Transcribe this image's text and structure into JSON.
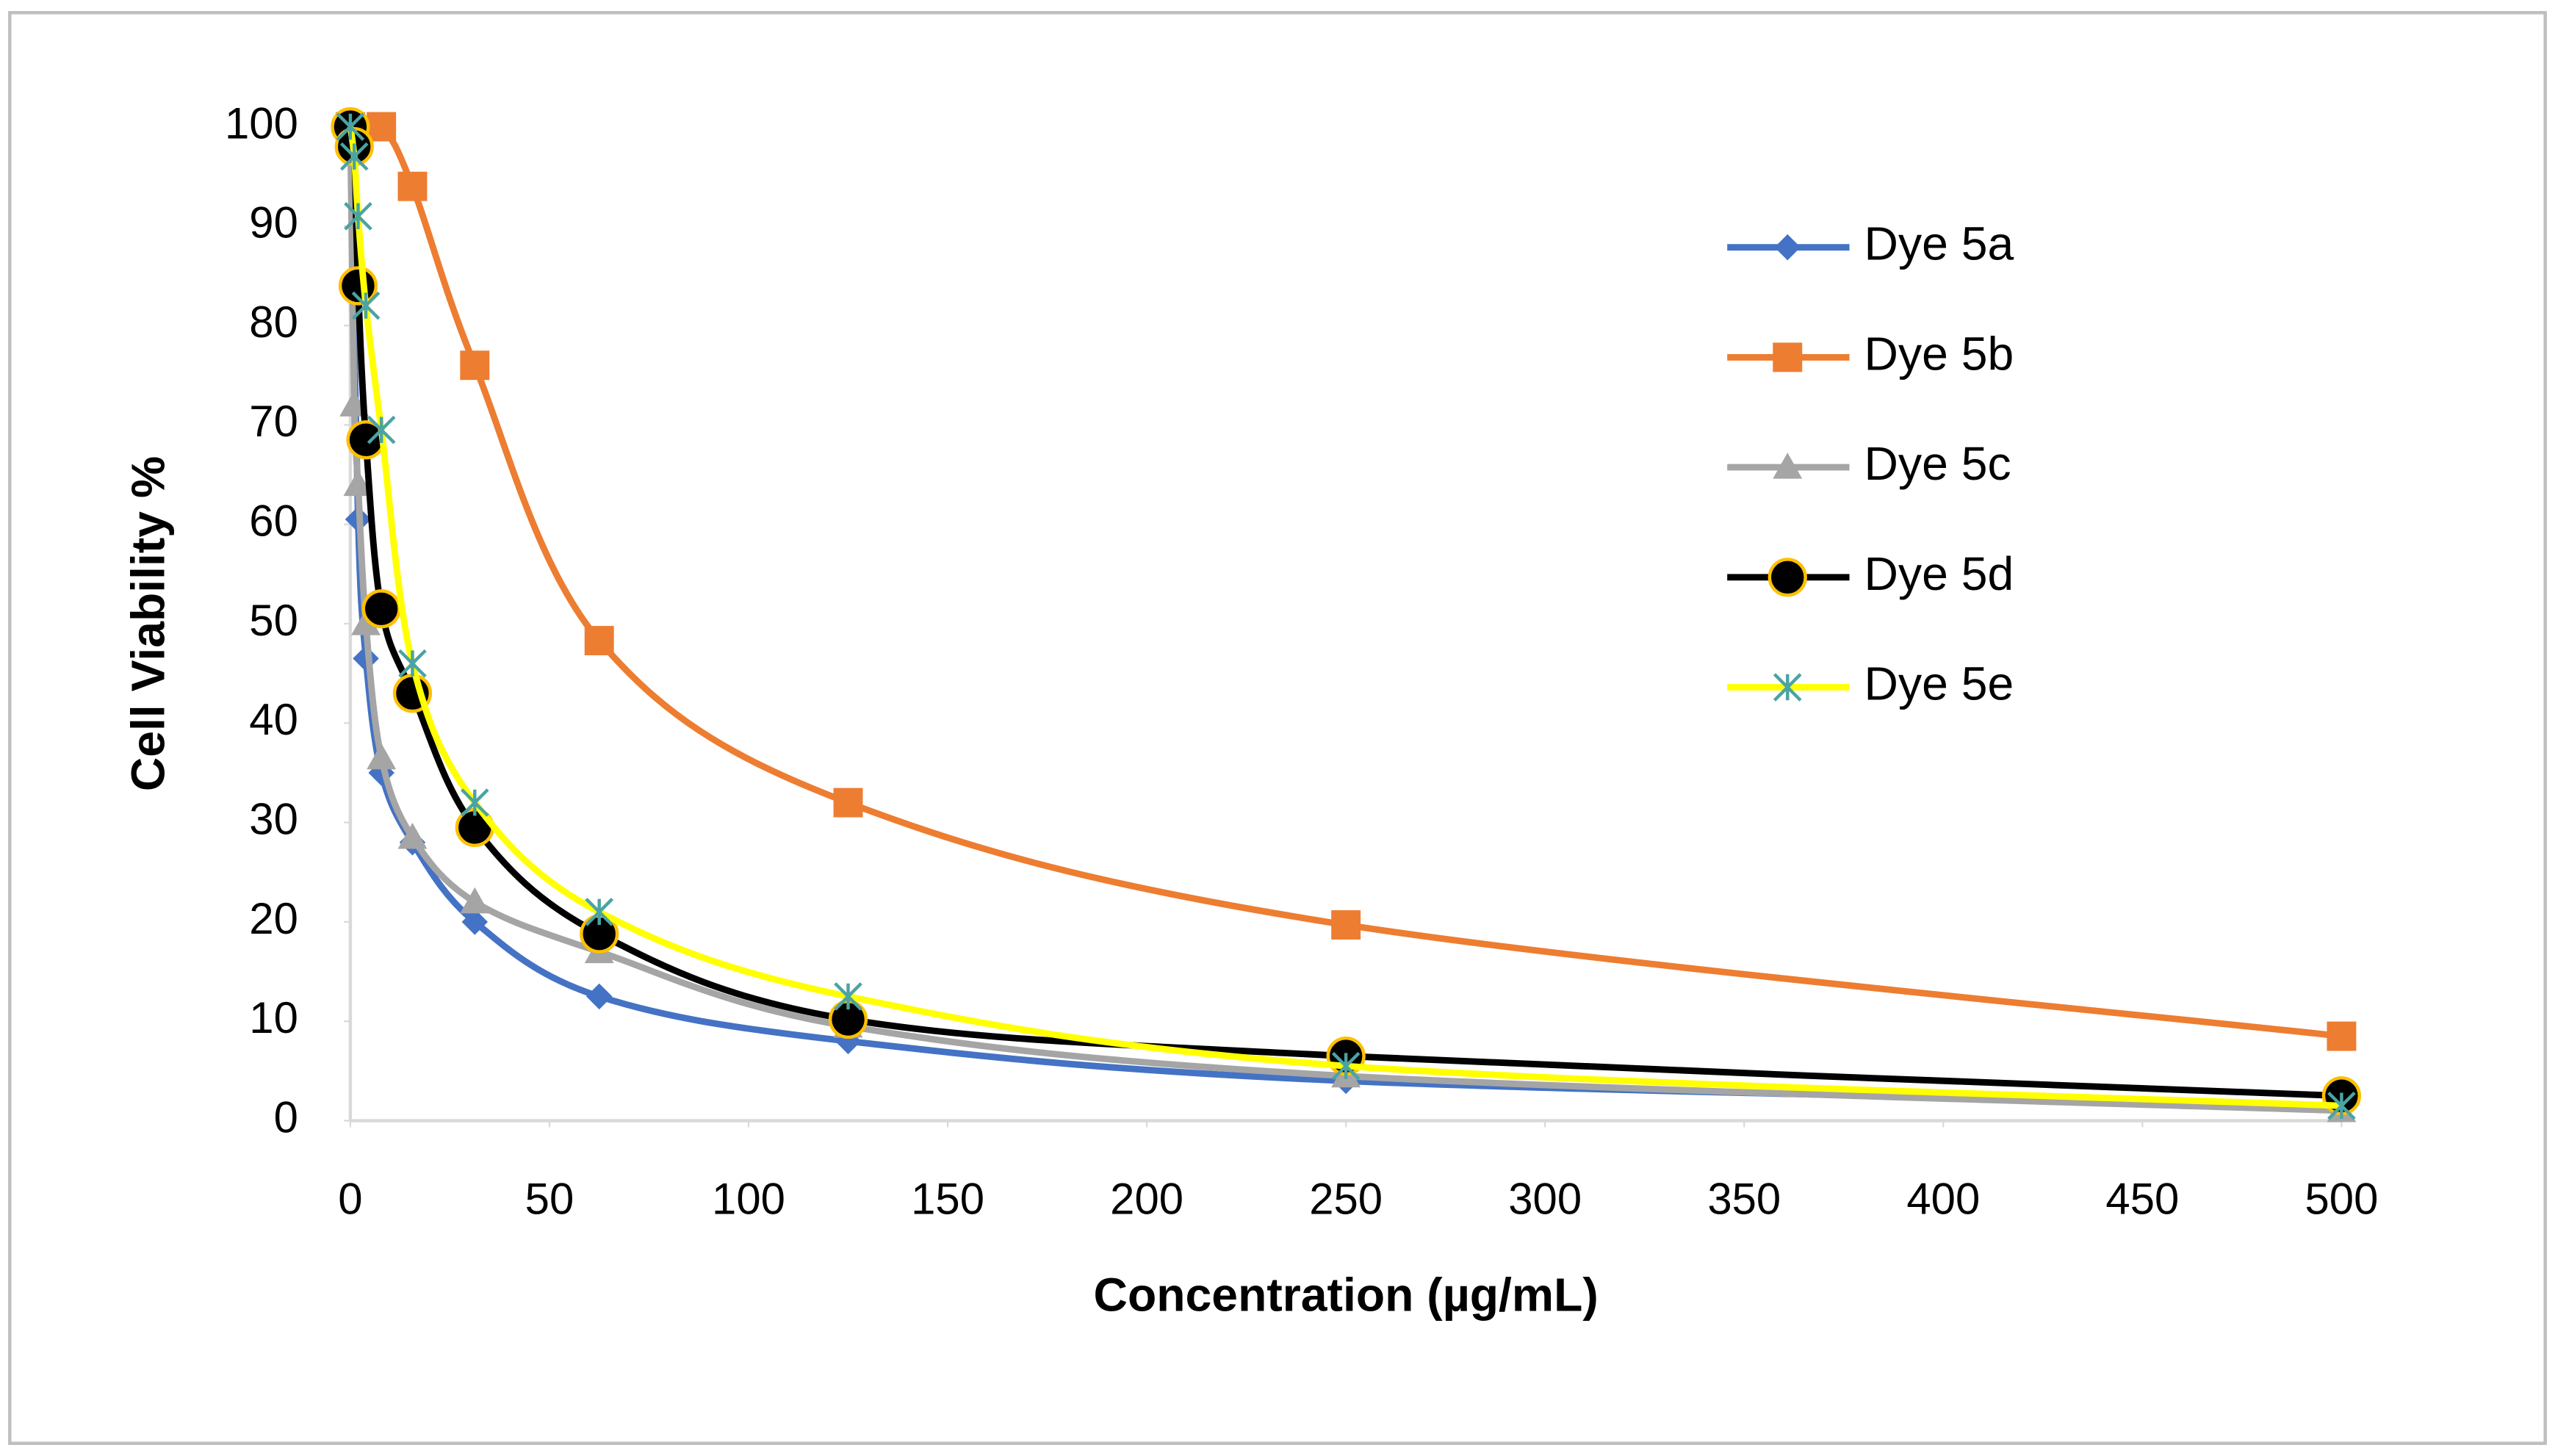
{
  "chart_data": {
    "type": "line",
    "x_label": "Concentration (µg/mL)",
    "y_label": "Cell  Viability %",
    "xlim": [
      0,
      500
    ],
    "xticks": [
      0,
      50,
      100,
      150,
      200,
      250,
      300,
      350,
      400,
      450,
      500
    ],
    "ylim": [
      0,
      100
    ],
    "yticks": [
      0,
      10,
      20,
      30,
      40,
      50,
      60,
      70,
      80,
      90,
      100
    ],
    "grid": false,
    "smooth": true,
    "legend": "right",
    "series": [
      {
        "name": "Dye 5a",
        "color": "#4472c4",
        "marker": "diamond",
        "x": [
          0,
          1.95,
          3.9,
          7.8,
          15.6,
          31.25,
          62.5,
          125,
          250,
          500
        ],
        "values": [
          100,
          60.5,
          46.5,
          35,
          28,
          20,
          12.5,
          8,
          4,
          1.5
        ]
      },
      {
        "name": "Dye 5b",
        "color": "#ed7d31",
        "marker": "square",
        "x": [
          0,
          7.8,
          15.6,
          31.25,
          62.5,
          125,
          250,
          500
        ],
        "values": [
          100,
          100,
          94,
          76,
          48.3,
          32,
          19.7,
          8.5
        ]
      },
      {
        "name": "Dye 5c",
        "color": "#a5a5a5",
        "marker": "triangle",
        "x": [
          0,
          0.98,
          1.95,
          3.9,
          7.8,
          15.6,
          31.25,
          62.5,
          125,
          250,
          500
        ],
        "values": [
          100,
          72,
          64,
          50,
          36.5,
          28.5,
          22,
          17,
          9.5,
          4.5,
          1
        ]
      },
      {
        "name": "Dye 5d",
        "color": "#000000",
        "marker": "circle",
        "marker_edge": "#ffc000",
        "x": [
          0,
          0.98,
          1.95,
          3.9,
          7.8,
          15.6,
          31.25,
          62.5,
          125,
          250,
          500
        ],
        "values": [
          100,
          98,
          84,
          68.5,
          51.5,
          43,
          29.5,
          18.8,
          10.2,
          6.5,
          2.5
        ]
      },
      {
        "name": "Dye 5e",
        "color": "#ffff00",
        "marker": "star",
        "marker_edge": "#4ba3a3",
        "x": [
          0,
          0.98,
          1.95,
          3.9,
          7.8,
          15.6,
          31.25,
          62.5,
          125,
          250,
          500
        ],
        "values": [
          100,
          97,
          91,
          82,
          69.5,
          46,
          32,
          21,
          12.5,
          5.5,
          1.5
        ]
      }
    ]
  }
}
